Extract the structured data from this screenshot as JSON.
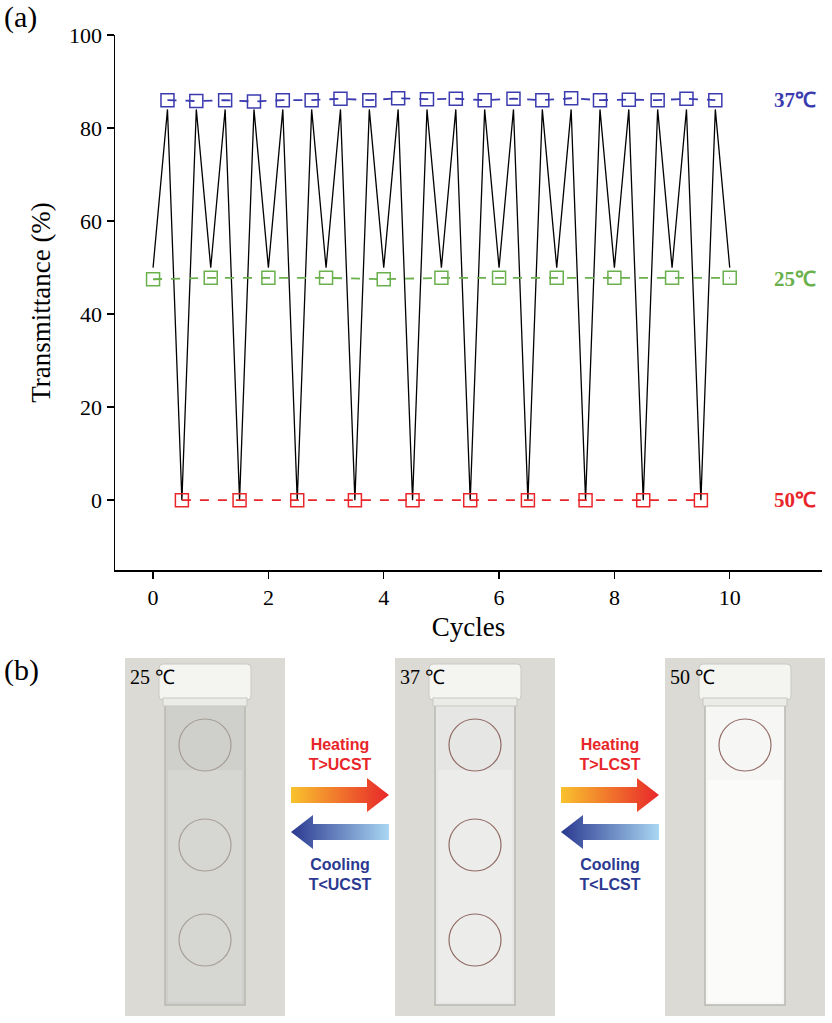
{
  "chart_data": {
    "type": "line",
    "x_label": "Cycles",
    "y_label": "Transmittance (%)",
    "xlim": [
      -0.66,
      11.6
    ],
    "xticks": [
      0,
      2,
      4,
      6,
      8,
      10
    ],
    "ylim": [
      -15,
      100
    ],
    "yticks": [
      0,
      20,
      40,
      60,
      80,
      100
    ],
    "grid": false,
    "series": [
      {
        "color": "#000000",
        "marker": "none",
        "line_style": "solid",
        "x": [
          0,
          0.25,
          0.5,
          0.75,
          1,
          1.25,
          1.5,
          1.75,
          2,
          2.25,
          2.5,
          2.75,
          3,
          3.25,
          3.5,
          3.75,
          4,
          4.25,
          4.5,
          4.75,
          5,
          5.25,
          5.5,
          5.75,
          6,
          6.25,
          6.5,
          6.75,
          7,
          7.25,
          7.5,
          7.75,
          8,
          8.25,
          8.5,
          8.75,
          9,
          9.25,
          9.5,
          9.75,
          10
        ],
        "values": [
          50,
          84,
          0,
          84,
          50,
          84,
          0,
          84,
          50,
          84,
          0,
          84,
          50,
          84,
          0,
          84,
          50,
          84,
          0,
          84,
          50,
          84,
          0,
          84,
          50,
          84,
          0,
          84,
          50,
          84,
          0,
          84,
          50,
          84,
          0,
          84,
          50,
          84,
          0,
          84,
          50
        ]
      },
      {
        "name": "37℃",
        "color": "#3b3bb0",
        "marker": "square-open",
        "line_style": "dash",
        "x": [
          0.25,
          0.75,
          1.25,
          1.75,
          2.25,
          2.75,
          3.25,
          3.75,
          4.25,
          4.75,
          5.25,
          5.75,
          6.25,
          6.75,
          7.25,
          7.75,
          8.25,
          8.75,
          9.25,
          9.75
        ],
        "values": [
          86,
          85.8,
          86,
          85.7,
          86,
          86,
          86.3,
          86,
          86.4,
          86.2,
          86.3,
          86,
          86.3,
          86,
          86.4,
          86,
          86.1,
          86,
          86.3,
          86
        ]
      },
      {
        "name": "25℃",
        "color": "#6ab04c",
        "marker": "square-open",
        "line_style": "dash",
        "x": [
          0,
          1,
          2,
          3,
          4,
          5,
          6,
          7,
          8,
          9,
          10
        ],
        "values": [
          47.5,
          47.8,
          47.8,
          47.8,
          47.5,
          47.8,
          47.8,
          47.8,
          47.8,
          47.8,
          47.8
        ]
      },
      {
        "name": "50℃",
        "color": "#e8262a",
        "marker": "square-open",
        "line_style": "dash",
        "x": [
          0.5,
          1.5,
          2.5,
          3.5,
          4.5,
          5.5,
          6.5,
          7.5,
          8.5,
          9.5
        ],
        "values": [
          0,
          0,
          0,
          0,
          0,
          0,
          0,
          0,
          0,
          0
        ]
      }
    ]
  },
  "panels": {
    "a": "(a)",
    "b": "(b)"
  },
  "photos": [
    {
      "temperature": "25 ℃"
    },
    {
      "temperature": "37 ℃"
    },
    {
      "temperature": "50 ℃"
    }
  ],
  "transitions": [
    {
      "heating": "Heating",
      "heating_condition": "T>UCST",
      "cooling": "Cooling",
      "cooling_condition": "T<UCST"
    },
    {
      "heating": "Heating",
      "heating_condition": "T>LCST",
      "cooling": "Cooling",
      "cooling_condition": "T<LCST"
    }
  ]
}
